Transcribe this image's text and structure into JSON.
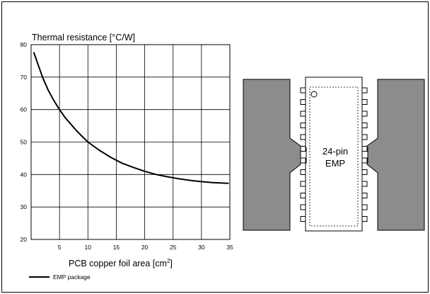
{
  "chart_data": {
    "type": "line",
    "title": "Thermal resistance   [°C/W]",
    "xlabel": "PCB copper foil area  [cm",
    "xlabel_sup": "2",
    "xlabel_close": "]",
    "xlim": [
      0,
      35
    ],
    "ylim": [
      20,
      80
    ],
    "x_ticks": [
      5,
      10,
      15,
      20,
      25,
      30,
      35
    ],
    "y_ticks": [
      20,
      30,
      40,
      50,
      60,
      70,
      80
    ],
    "grid": true,
    "legend": "bottom-left",
    "series": [
      {
        "name": "EMP package",
        "color": "#000000",
        "x": [
          0.5,
          1,
          2,
          3,
          4,
          5,
          6,
          7,
          8,
          9,
          10,
          12,
          14,
          16,
          18,
          20,
          22,
          24,
          26,
          28,
          30,
          32,
          34.7
        ],
        "y": [
          77.5,
          75,
          70,
          66,
          62.8,
          60,
          57.5,
          55.5,
          53.5,
          51.7,
          50,
          47.5,
          45.3,
          43.5,
          42.2,
          41,
          40,
          39.3,
          38.7,
          38.2,
          37.8,
          37.5,
          37.3
        ]
      }
    ]
  },
  "package_diagram": {
    "label_line1": "24-pin",
    "label_line2": "EMP",
    "pins_per_side": 12,
    "copper_color": "#8c8c8c",
    "body_color": "#ffffff"
  }
}
